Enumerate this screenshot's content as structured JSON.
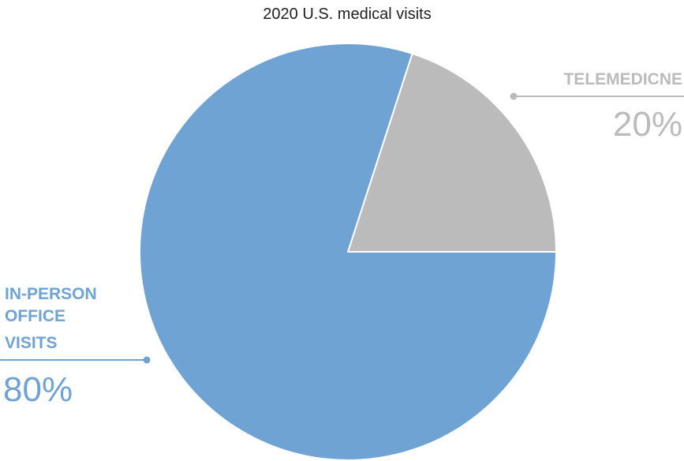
{
  "chart_data": {
    "type": "pie",
    "title": "2020 U.S. medical visits",
    "start_angle_deg": 0,
    "direction": "counterclockwise",
    "slices": [
      {
        "label_lines": [
          "TELEMEDICNE"
        ],
        "value": 20,
        "value_label": "20%",
        "color": "#bbbbbb",
        "label_color": "#bbbbbb"
      },
      {
        "label_lines": [
          "IN-PERSON",
          "OFFICE",
          "VISITS"
        ],
        "value": 80,
        "value_label": "80%",
        "color": "#6fa3d4",
        "label_color": "#6fa3d4"
      }
    ]
  }
}
